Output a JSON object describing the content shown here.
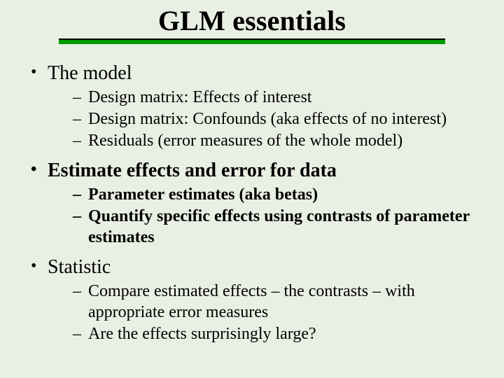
{
  "title": "GLM essentials",
  "colors": {
    "background": "#e9efe3",
    "rule_top_border": "#000000",
    "rule_fill": "#009900",
    "text": "#000000"
  },
  "typography": {
    "family": "Times New Roman",
    "title_fontsize_pt": 40,
    "title_weight": "bold",
    "lvl1_fontsize_pt": 28,
    "lvl2_fontsize_pt": 24
  },
  "bullets": [
    {
      "text": "The model",
      "bold": false,
      "sub": [
        {
          "text": "Design matrix: Effects of interest",
          "bold": false
        },
        {
          "text": "Design matrix: Confounds (aka effects of no interest)",
          "bold": false
        },
        {
          "text": "Residuals (error measures of the whole model)",
          "bold": false
        }
      ]
    },
    {
      "text": "Estimate effects and error for data",
      "bold": true,
      "sub": [
        {
          "text": "Parameter estimates (aka betas)",
          "bold": true
        },
        {
          "text": "Quantify specific effects using contrasts of parameter estimates",
          "bold": true
        }
      ]
    },
    {
      "text": "Statistic",
      "bold": false,
      "sub": [
        {
          "text": "Compare estimated effects – the contrasts – with appropriate error measures",
          "bold": false
        },
        {
          "text": "Are the effects surprisingly large?",
          "bold": false
        }
      ]
    }
  ]
}
